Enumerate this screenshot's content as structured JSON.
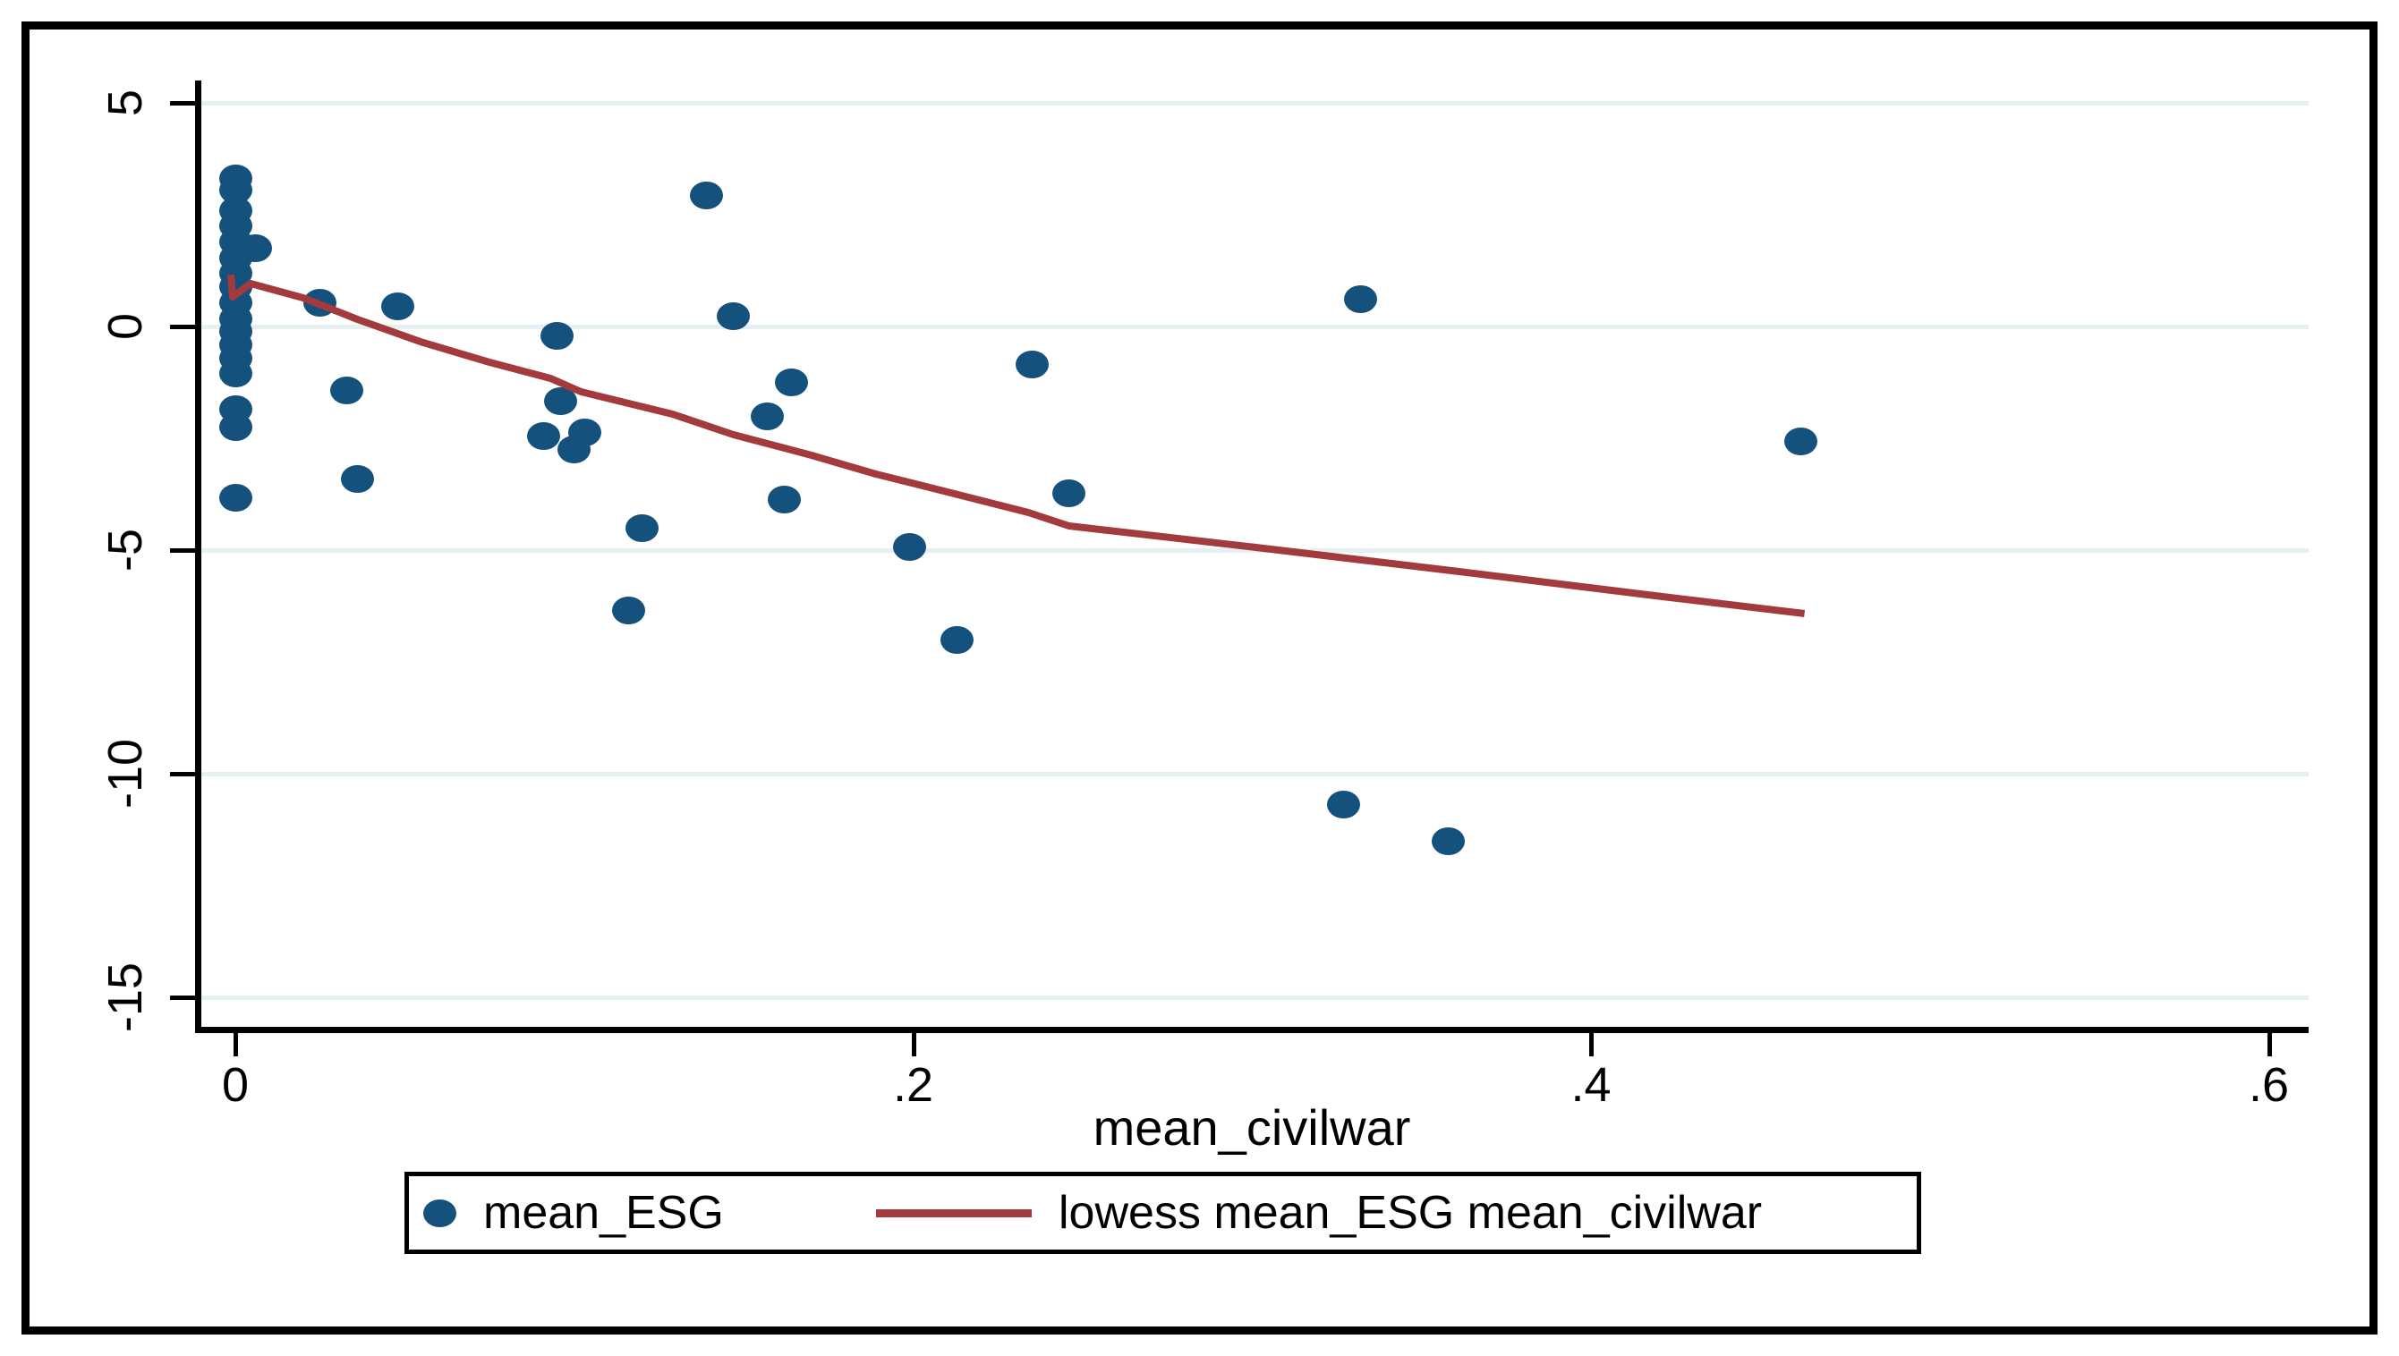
{
  "figure": {
    "background": "#ffffff",
    "border_color": "#000000"
  },
  "chart_data": {
    "type": "scatter",
    "title": "",
    "xlabel": "mean_civilwar",
    "ylabel": "",
    "x_tick_labels": [
      "0",
      ".2",
      ".4",
      ".6"
    ],
    "x_tick_values": [
      0,
      0.2,
      0.4,
      0.6
    ],
    "y_tick_labels": [
      "5",
      "0",
      "-5",
      "-10",
      "-15"
    ],
    "y_tick_values": [
      5,
      0,
      -5,
      -10,
      -15
    ],
    "xlim": [
      -0.0108,
      0.6118
    ],
    "ylim": [
      -15.66,
      5.5
    ],
    "grid": "horizontal",
    "colors": {
      "scatter": "#14517c",
      "line": "#a23a3e",
      "gridline": "#e6f0f2",
      "axis": "#000000",
      "background": "#ffffff"
    },
    "series": [
      {
        "name": "mean_ESG",
        "type": "scatter",
        "marker": "filled-circle",
        "color": "#14517c",
        "points": [
          [
            0,
            3.32
          ],
          [
            0,
            3.06
          ],
          [
            0,
            2.6
          ],
          [
            0,
            2.26
          ],
          [
            0,
            1.9
          ],
          [
            0.006,
            1.76
          ],
          [
            0,
            1.54
          ],
          [
            0,
            1.2
          ],
          [
            0,
            0.9
          ],
          [
            0,
            0.54
          ],
          [
            0,
            0.18
          ],
          [
            0,
            -0.1
          ],
          [
            0,
            -0.4
          ],
          [
            0,
            -0.7
          ],
          [
            0,
            -1.04
          ],
          [
            0,
            -1.84
          ],
          [
            0,
            -2.24
          ],
          [
            0,
            -3.82
          ],
          [
            0.025,
            0.54
          ],
          [
            0.048,
            0.46
          ],
          [
            0.033,
            -1.42
          ],
          [
            0.036,
            -3.4
          ],
          [
            0.095,
            -0.2
          ],
          [
            0.096,
            -1.66
          ],
          [
            0.091,
            -2.44
          ],
          [
            0.103,
            -2.36
          ],
          [
            0.1,
            -2.74
          ],
          [
            0.12,
            -4.5
          ],
          [
            0.116,
            -6.34
          ],
          [
            0.139,
            2.94
          ],
          [
            0.147,
            0.24
          ],
          [
            0.164,
            -1.24
          ],
          [
            0.157,
            -2.0
          ],
          [
            0.162,
            -3.86
          ],
          [
            0.199,
            -4.92
          ],
          [
            0.213,
            -7.0
          ],
          [
            0.235,
            -0.84
          ],
          [
            0.246,
            -3.72
          ],
          [
            0.332,
            0.62
          ],
          [
            0.327,
            -10.68
          ],
          [
            0.358,
            -11.5
          ],
          [
            0.462,
            -2.56
          ]
        ]
      },
      {
        "name": "lowess mean_ESG mean_civilwar",
        "type": "line",
        "color": "#a23a3e",
        "points": [
          [
            -0.0013,
            1.16
          ],
          [
            -0.0008,
            0.66
          ],
          [
            0.0045,
            0.96
          ],
          [
            0.02,
            0.64
          ],
          [
            0.036,
            0.16
          ],
          [
            0.055,
            -0.35
          ],
          [
            0.075,
            -0.8
          ],
          [
            0.093,
            -1.16
          ],
          [
            0.102,
            -1.46
          ],
          [
            0.129,
            -1.96
          ],
          [
            0.147,
            -2.42
          ],
          [
            0.17,
            -2.88
          ],
          [
            0.189,
            -3.3
          ],
          [
            0.208,
            -3.66
          ],
          [
            0.234,
            -4.16
          ],
          [
            0.246,
            -4.46
          ],
          [
            0.3,
            -4.93
          ],
          [
            0.36,
            -5.47
          ],
          [
            0.42,
            -6.03
          ],
          [
            0.463,
            -6.42
          ]
        ]
      }
    ],
    "legend": {
      "position": "bottom-center",
      "border": true,
      "entries": [
        "mean_ESG",
        "lowess mean_ESG mean_civilwar"
      ]
    }
  }
}
